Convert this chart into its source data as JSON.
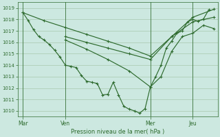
{
  "bg_color": "#cce8e0",
  "grid_color": "#99bb99",
  "line_color": "#2d6a2d",
  "xlabel": "Pression niveau de la mer( hPa )",
  "ylim": [
    1009.5,
    1019.5
  ],
  "yticks": [
    1010,
    1011,
    1012,
    1013,
    1014,
    1015,
    1016,
    1017,
    1018,
    1019
  ],
  "xtick_labels": [
    "Mar",
    "Ven",
    "Mer",
    "Jeu"
  ],
  "xtick_positions": [
    0,
    24,
    72,
    96
  ],
  "xlim": [
    -3,
    110
  ],
  "lines": [
    {
      "x": [
        0,
        3,
        6,
        9,
        12,
        15,
        18,
        21,
        24,
        27,
        30,
        33,
        36,
        39,
        42,
        45,
        48,
        51,
        54,
        57,
        60,
        63,
        66,
        69,
        72,
        75,
        78,
        81,
        84,
        87,
        90,
        93,
        96,
        99,
        102,
        105
      ],
      "y": [
        1018.6,
        1017.9,
        1017.1,
        1016.5,
        1016.2,
        1015.8,
        1015.3,
        1014.7,
        1014.0,
        1013.9,
        1013.8,
        1013.1,
        1012.6,
        1012.5,
        1012.4,
        1011.4,
        1011.45,
        1012.5,
        1011.4,
        1010.4,
        1010.15,
        1010.0,
        1009.8,
        1010.2,
        1012.1,
        1013.0,
        1014.0,
        1015.5,
        1016.1,
        1016.8,
        1017.0,
        1017.8,
        1018.0,
        1017.85,
        1018.05,
        1018.85
      ]
    },
    {
      "x": [
        0,
        12,
        24,
        36,
        48,
        60,
        72,
        84,
        96,
        108
      ],
      "y": [
        1018.6,
        1017.9,
        1017.3,
        1016.7,
        1016.1,
        1015.5,
        1014.8,
        1016.5,
        1018.2,
        1018.9
      ]
    },
    {
      "x": [
        24,
        36,
        48,
        60,
        72,
        84,
        96,
        108
      ],
      "y": [
        1016.5,
        1016.0,
        1015.5,
        1015.0,
        1014.5,
        1016.5,
        1017.8,
        1018.2
      ]
    },
    {
      "x": [
        24,
        36,
        48,
        60,
        72,
        78,
        84,
        90,
        96,
        102,
        108
      ],
      "y": [
        1016.2,
        1015.4,
        1014.5,
        1013.5,
        1012.1,
        1013.0,
        1015.2,
        1016.5,
        1016.8,
        1017.5,
        1017.2
      ]
    }
  ]
}
